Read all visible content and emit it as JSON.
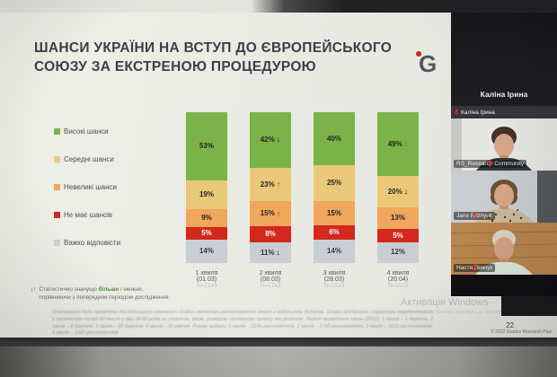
{
  "slide": {
    "title": "ШАНСИ УКРАЇНИ НА ВСТУП ДО ЄВРОПЕЙСЬКОГО СОЮЗУ ЗА ЕКСТРЕНОЮ ПРОЦЕДУРОЮ",
    "logo_letter": "G",
    "footnote": {
      "arrow_down": "↓",
      "arrow_up": "↑",
      "prefix": "Статистично значущо ",
      "highlight": "більше",
      "suffix": " / менше,",
      "line2": " порівнюючи з попереднім періодом дослідження"
    },
    "fine_print": "Опитування було проведено дослідницькою компанією Gradus методом самозаповнення анкет у мобільному додатку. Gradus відображає структуру населення міст з населенням понад 50 тисяч у віці 18-60 років за статтю, віком, розміром населеного пункту та регіоном. Період проведення хвиль (2022): 1 хвиля – 1 березня, 2 хвиля – 8 березня, 3 хвиля – 28 березня, 4 хвиля – 20 квітня. Розмір вибірки: 1 хвиля – 2144 респондентів, 2 хвиля – 1743 респондентів, 3 хвиля – 1519 респондентів, 4 хвиля – 1022 респондентів",
    "watermark": "Активація Windows",
    "watermark_sub": "Щоб активувати Windows, перейдіть до настройок.",
    "page_number": "22",
    "copyright": "© 2022 Gradus Research Plus"
  },
  "chart_data": {
    "type": "stacked-bar",
    "title": "ШАНСИ УКРАЇНИ НА ВСТУП ДО ЄВРОПЕЙСЬКОГО СОЮЗУ ЗА ЕКСТРЕНОЮ ПРОЦЕДУРОЮ",
    "unit": "%",
    "ylim": [
      0,
      100
    ],
    "legend_position": "left",
    "waves": [
      {
        "label": "1 хвиля",
        "date": "(01.03)",
        "n": "N=2144"
      },
      {
        "label": "2 хвиля",
        "date": "(08.03)",
        "n": "N=1743"
      },
      {
        "label": "3 хвиля",
        "date": "(28.03)",
        "n": "N=1519"
      },
      {
        "label": "4 хвиля",
        "date": "(20.04)",
        "n": "N=1022"
      }
    ],
    "series": [
      {
        "name": "Високі шанси",
        "color": "#7cb24a",
        "label_color": "#222222",
        "values": [
          53,
          42,
          40,
          49
        ],
        "trend": [
          "",
          "down",
          "",
          "up"
        ]
      },
      {
        "name": "Середні шанси",
        "color": "#e9c979",
        "label_color": "#222222",
        "values": [
          19,
          23,
          25,
          20
        ],
        "trend": [
          "",
          "up",
          "",
          "down"
        ]
      },
      {
        "name": "Невеликі шанси",
        "color": "#efa75c",
        "label_color": "#222222",
        "values": [
          9,
          15,
          15,
          13
        ],
        "trend": [
          "",
          "up",
          "",
          ""
        ]
      },
      {
        "name": "Не має шансів",
        "color": "#d2281e",
        "label_color": "#ffffff",
        "values": [
          5,
          8,
          6,
          5
        ],
        "trend": [
          "",
          "",
          "",
          ""
        ]
      },
      {
        "name": "Важко відповісти",
        "color": "#c9ced4",
        "label_color": "#33373b",
        "values": [
          14,
          11,
          14,
          12
        ],
        "trend": [
          "",
          "down",
          "",
          ""
        ]
      }
    ],
    "trend_glyphs": {
      "up": "↑",
      "down": "↓"
    },
    "trend_colors": {
      "up": "#c01c14",
      "down": "#1c1c1c"
    }
  },
  "sidebar": {
    "header": "Каліна Ірина",
    "participants": [
      {
        "name": "Каліна Ірина",
        "mic": "muted",
        "video": "hidden"
      },
      {
        "name": "RS_Research Community",
        "mic": "muted",
        "video": "woman-office"
      },
      {
        "name": "Jane Bliznyuk",
        "mic": "muted",
        "video": "woman-leopard"
      },
      {
        "name": "Настя Левчук",
        "mic": "muted",
        "video": "woman-wood"
      }
    ]
  }
}
